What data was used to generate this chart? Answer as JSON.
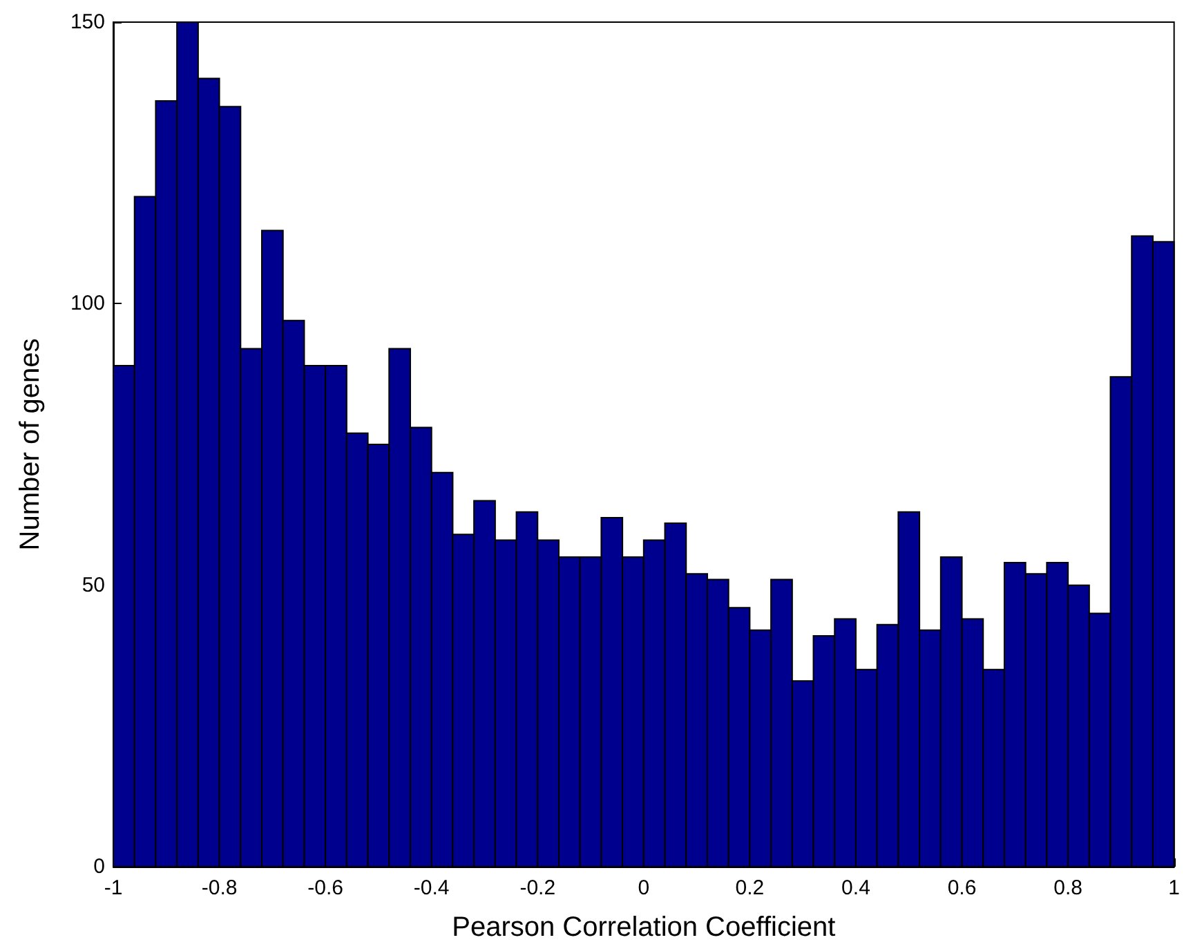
{
  "chart_data": {
    "type": "histogram",
    "xlabel": "Pearson Correlation Coefficient",
    "ylabel": "Number of genes",
    "bins": [
      -1,
      -0.96,
      -0.92,
      -0.88,
      -0.84,
      -0.8,
      -0.76,
      -0.72,
      -0.68,
      -0.64,
      -0.6,
      -0.56,
      -0.52,
      -0.48,
      -0.44,
      -0.4,
      -0.36,
      -0.32,
      -0.28,
      -0.24,
      -0.2,
      -0.16,
      -0.12,
      -0.08,
      -0.04,
      0,
      0.04,
      0.08,
      0.12,
      0.16,
      0.2,
      0.24,
      0.28,
      0.32,
      0.36,
      0.4,
      0.44,
      0.48,
      0.52,
      0.56,
      0.6,
      0.64,
      0.68,
      0.72,
      0.76,
      0.8,
      0.84,
      0.88,
      0.92,
      0.96,
      1
    ],
    "values": [
      89,
      119,
      136,
      150,
      140,
      135,
      92,
      113,
      97,
      89,
      89,
      77,
      75,
      92,
      78,
      70,
      59,
      65,
      58,
      63,
      58,
      55,
      55,
      62,
      55,
      58,
      61,
      52,
      51,
      46,
      42,
      51,
      33,
      41,
      44,
      35,
      43,
      63,
      42,
      55,
      44,
      35,
      54,
      52,
      54,
      50,
      45,
      87,
      112,
      111
    ],
    "color": "#00008f",
    "xlim": [
      -1,
      1
    ],
    "xticks": [
      -1,
      -0.8,
      -0.6,
      -0.4,
      -0.2,
      0,
      0.2,
      0.4,
      0.6,
      0.8,
      1
    ],
    "ylim": [
      0,
      150
    ],
    "yticks": [
      0,
      50,
      100,
      150
    ],
    "grid": false
  }
}
